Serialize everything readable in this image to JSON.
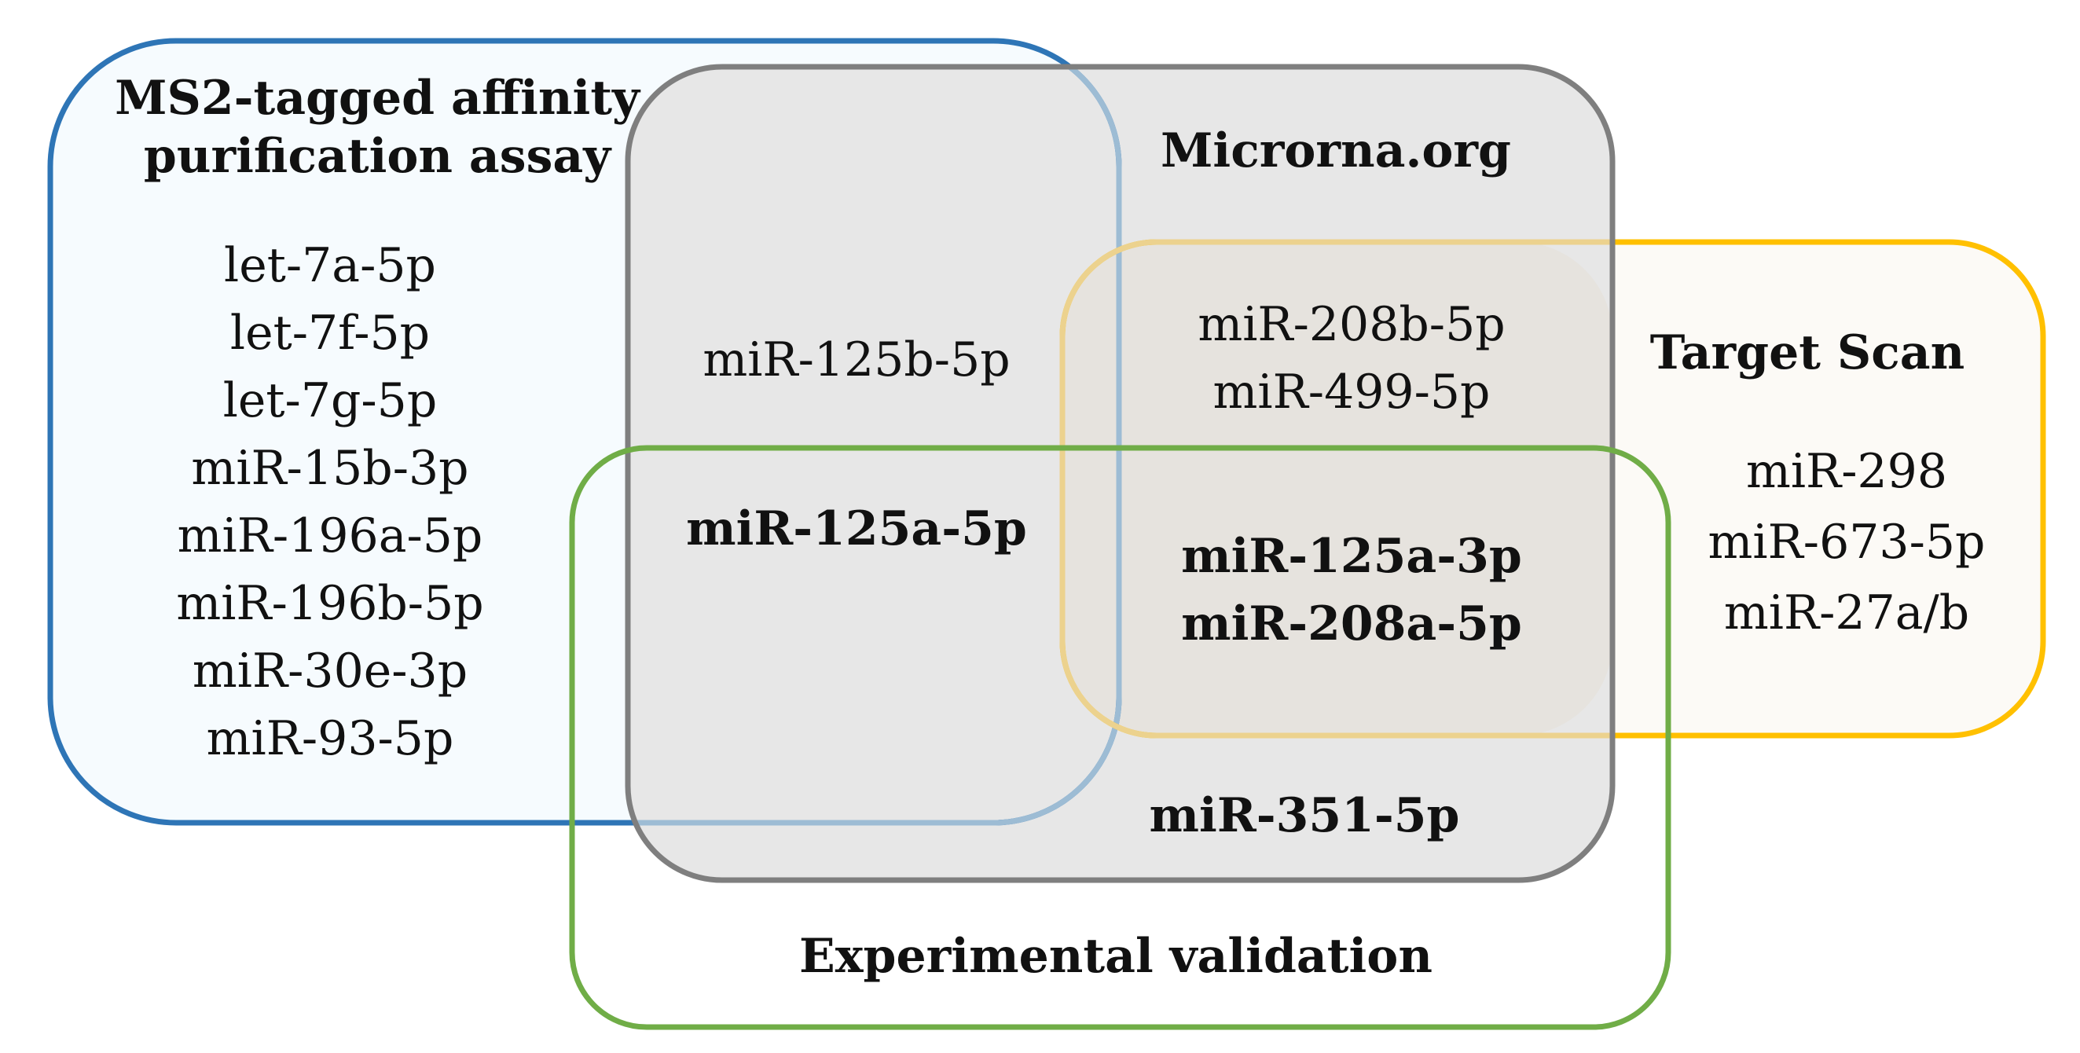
{
  "sets": {
    "ms2": {
      "title_lines": [
        "MS2-tagged affinity",
        "purification assay"
      ],
      "members": [
        "let-7a-5p",
        "let-7f-5p",
        "let-7g-5p",
        "miR-15b-3p",
        "miR-196a-5p",
        "miR-196b-5p",
        "miR-30e-3p",
        "miR-93-5p"
      ],
      "fill": "#f6fbfe",
      "stroke": "#2e75b6"
    },
    "microrna": {
      "title": "Microrna.org",
      "fill": "#e5e5e5",
      "stroke": "#7f7f7f"
    },
    "targetscan": {
      "title": "Target Scan",
      "members": [
        "miR-298",
        "miR-673-5p",
        "miR-27a/b"
      ],
      "fill": "#fcfaf6",
      "stroke": "#ffc000"
    },
    "experimental": {
      "title": "Experimental validation",
      "stroke": "#70ad47"
    }
  },
  "intersections": {
    "ms2_microrna": "miR-125b-5p",
    "ms2_microrna_experimental": "miR-125a-5p",
    "microrna_targetscan": [
      "miR-208b-5p",
      "miR-499-5p"
    ],
    "microrna_targetscan_experimental": [
      "miR-125a-3p",
      "miR-208a-5p"
    ],
    "microrna_experimental": "miR-351-5p"
  }
}
